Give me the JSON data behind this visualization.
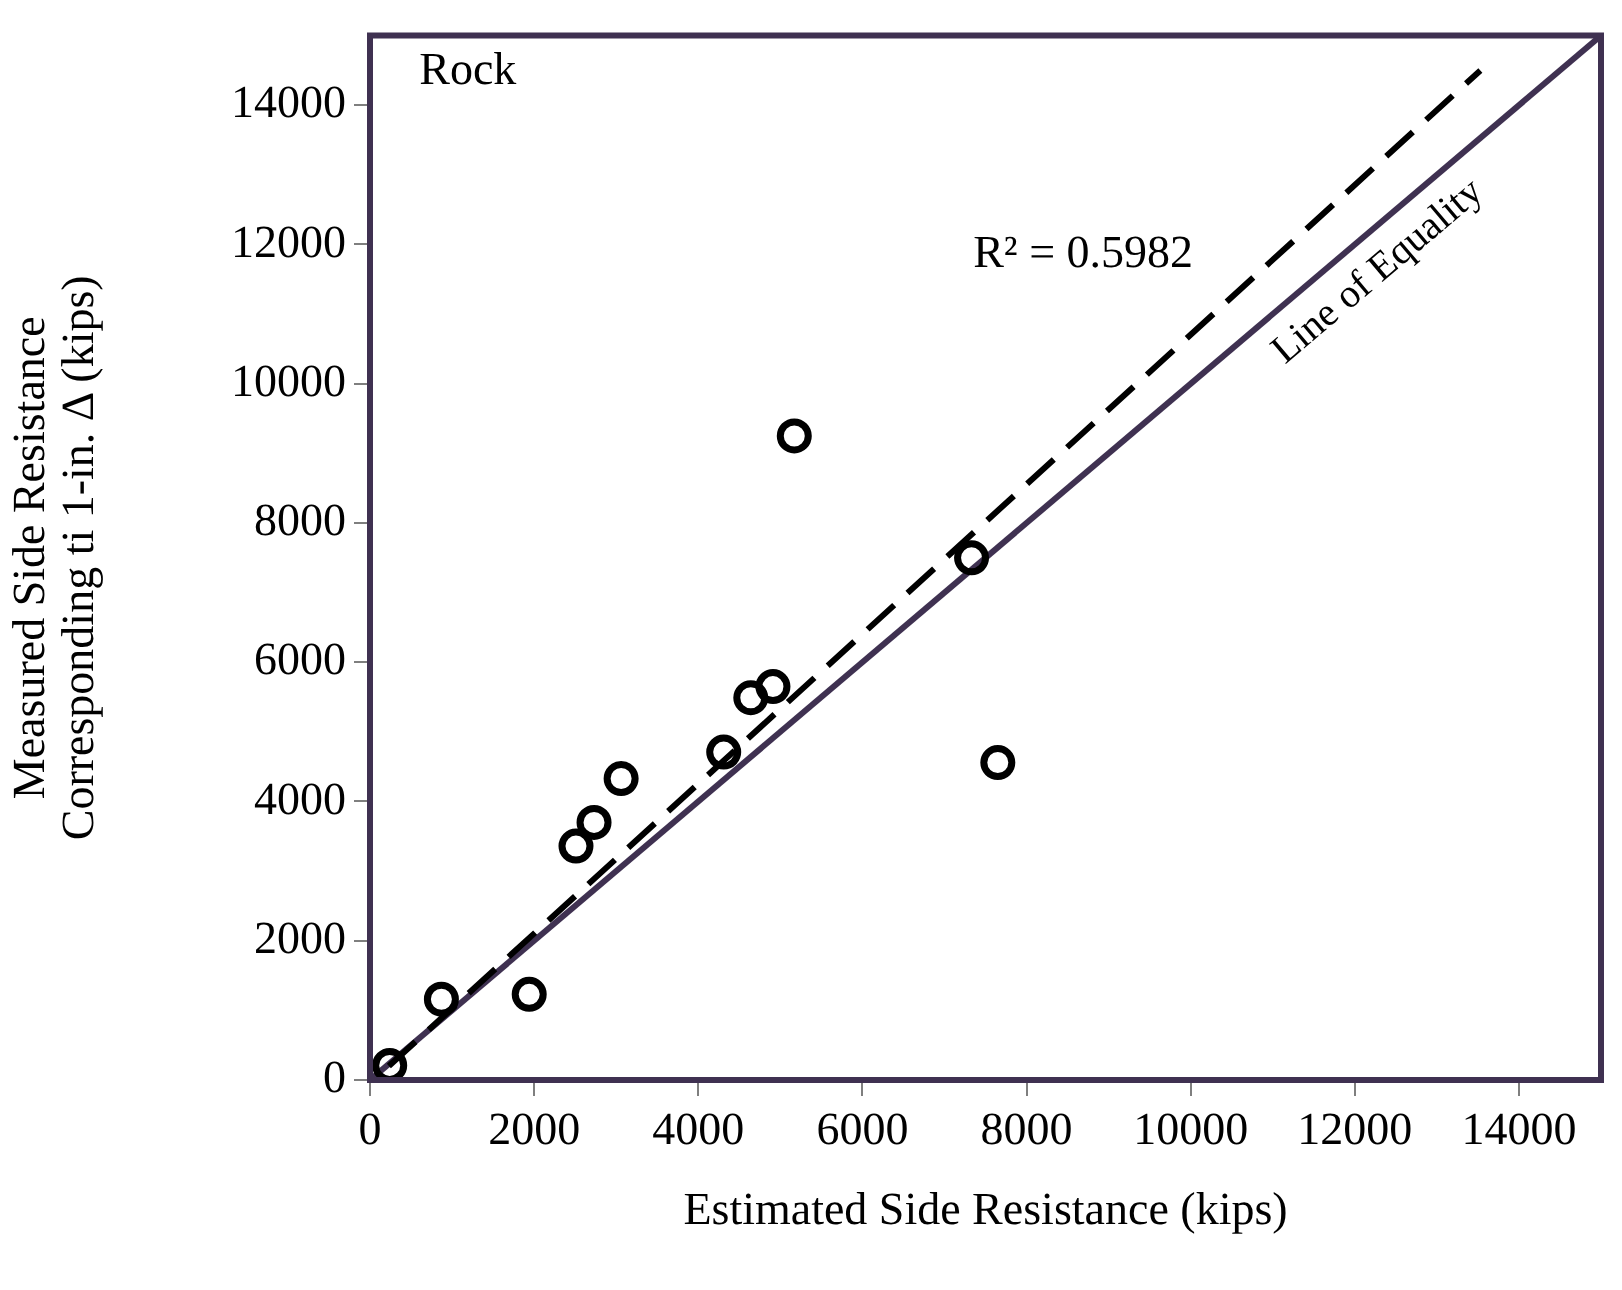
{
  "chart_data": {
    "type": "scatter",
    "xlabel": "Estimated Side Resistance (kips)",
    "ylabel": "Measured Side Resistance\nCorresponding ti 1-in. Δ (kips)",
    "xlim": [
      0,
      15000
    ],
    "ylim": [
      0,
      15000
    ],
    "xticks": [
      0,
      2000,
      4000,
      6000,
      8000,
      10000,
      12000,
      14000
    ],
    "yticks": [
      0,
      2000,
      4000,
      6000,
      8000,
      10000,
      12000,
      14000
    ],
    "grid": false,
    "legend": false,
    "annotations": [
      "Rock",
      "R² = 0.5982"
    ],
    "series": [
      {
        "type": "scatter",
        "marker": "circle",
        "color": "#000000",
        "x": [
          240,
          870,
          1940,
          2510,
          2730,
          3060,
          4310,
          4640,
          4910,
          7650,
          7330,
          5170
        ],
        "values": [
          210,
          1160,
          1230,
          3360,
          3700,
          4330,
          4710,
          5490,
          5650,
          4560,
          7500,
          9250
        ]
      },
      {
        "type": "line",
        "marker": "none",
        "line_style": "dashed",
        "color": "#000000",
        "x": [
          230,
          13530
        ],
        "values": [
          200,
          14500
        ]
      },
      {
        "type": "line",
        "name": "Line of Equality",
        "marker": "none",
        "line_style": "solid",
        "color": "#3f3151",
        "x": [
          0,
          15000
        ],
        "values": [
          0,
          15000
        ]
      }
    ]
  }
}
